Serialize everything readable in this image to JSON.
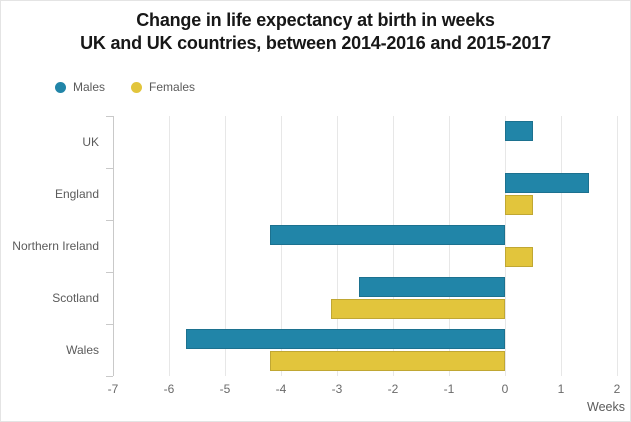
{
  "title": {
    "line1": "Change in life expectancy at birth in weeks",
    "line2": "UK and UK countries, between 2014-2016 and 2015-2017"
  },
  "chart_data": {
    "type": "bar",
    "orientation": "horizontal",
    "title": "Change in life expectancy at birth in weeks UK and UK countries, between 2014-2016 and 2015-2017",
    "categories": [
      "UK",
      "England",
      "Northern Ireland",
      "Scotland",
      "Wales"
    ],
    "series": [
      {
        "name": "Males",
        "color": "#2185a8",
        "values": [
          0.5,
          1.5,
          -4.2,
          -2.6,
          -5.7
        ]
      },
      {
        "name": "Females",
        "color": "#e2c53c",
        "values": [
          0.0,
          0.5,
          0.5,
          -3.1,
          -4.2
        ]
      }
    ],
    "xlabel": "Weeks",
    "x_ticks": [
      -7,
      -6,
      -5,
      -4,
      -3,
      -2,
      -1,
      0,
      1,
      2
    ],
    "xlim": [
      -7,
      2
    ],
    "grid": true,
    "legend_position": "top-left"
  },
  "colors": {
    "male_bar": "#2185a8",
    "female_bar": "#e2c53c",
    "grid": "#e7e7e7",
    "axis": "#c9c9c9",
    "label_text": "#5b5b5b",
    "title_text": "#171717"
  }
}
